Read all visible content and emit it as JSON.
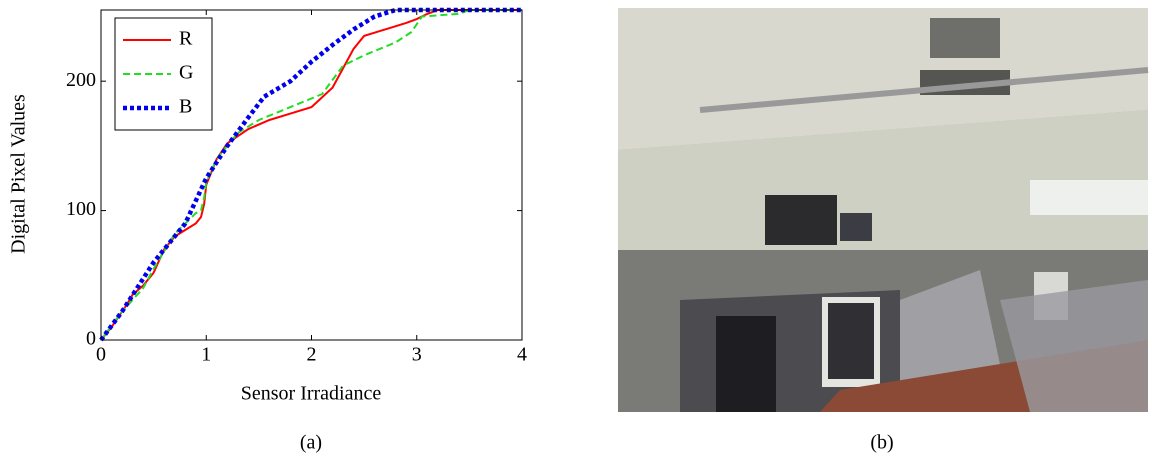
{
  "chart_data": {
    "type": "line",
    "xlabel": "Sensor Irradiance",
    "ylabel": "Digital Pixel Values",
    "caption": "(a)",
    "xlim": [
      0,
      4
    ],
    "ylim": [
      0,
      255
    ],
    "xticks": [
      0,
      1,
      2,
      3,
      4
    ],
    "yticks": [
      0,
      100,
      200
    ],
    "legend": "upper left",
    "series": [
      {
        "name": "R",
        "color": "#ff0000",
        "style": "solid",
        "x": [
          0,
          0.1,
          0.2,
          0.25,
          0.3,
          0.4,
          0.5,
          0.6,
          0.7,
          0.8,
          0.9,
          0.95,
          0.98,
          1.0,
          1.1,
          1.2,
          1.4,
          1.6,
          1.8,
          2.0,
          2.2,
          2.3,
          2.4,
          2.5,
          2.7,
          2.9,
          3.0,
          3.1,
          3.2,
          4
        ],
        "values": [
          0,
          10,
          22,
          28,
          35,
          42,
          52,
          70,
          80,
          85,
          90,
          95,
          105,
          120,
          140,
          152,
          163,
          170,
          175,
          180,
          195,
          210,
          225,
          235,
          240,
          245,
          248,
          252,
          255,
          255
        ]
      },
      {
        "name": "G",
        "color": "#22dd22",
        "style": "dashed",
        "x": [
          0,
          0.2,
          0.4,
          0.5,
          0.7,
          0.9,
          0.95,
          0.98,
          1.0,
          1.1,
          1.3,
          1.5,
          1.8,
          2.1,
          2.3,
          2.5,
          2.8,
          2.95,
          3.05,
          3.4,
          3.5,
          4
        ],
        "values": [
          0,
          22,
          40,
          55,
          82,
          98,
          100,
          110,
          122,
          140,
          160,
          170,
          180,
          190,
          212,
          220,
          230,
          238,
          250,
          252,
          255,
          255
        ]
      },
      {
        "name": "B",
        "color": "#0000ee",
        "style": "dotted",
        "x": [
          0,
          0.2,
          0.5,
          0.8,
          1.0,
          1.2,
          1.4,
          1.55,
          1.8,
          2.0,
          2.2,
          2.4,
          2.6,
          2.8,
          4
        ],
        "values": [
          0,
          22,
          60,
          90,
          125,
          150,
          172,
          188,
          200,
          215,
          228,
          240,
          250,
          255,
          255
        ]
      }
    ]
  },
  "photo": {
    "caption": "(b)"
  }
}
